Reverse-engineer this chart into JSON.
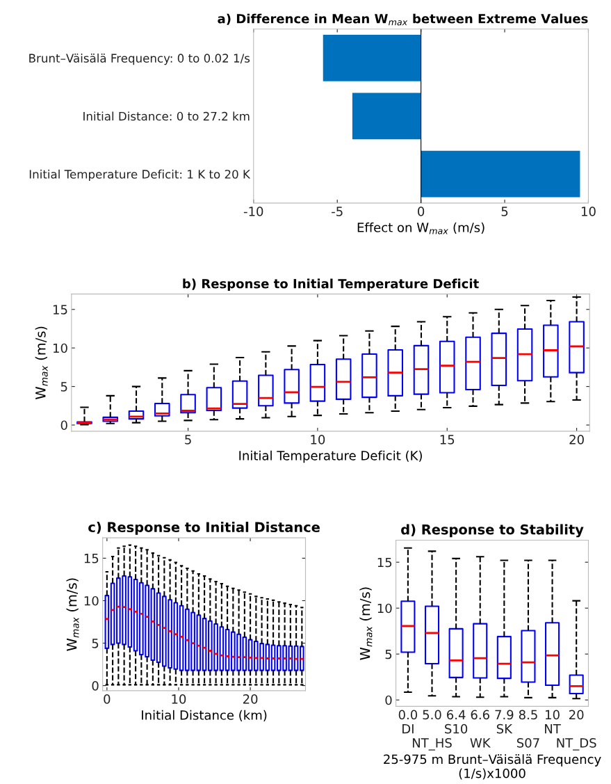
{
  "chart_data": [
    {
      "type": "bar",
      "orientation": "horizontal",
      "title": "a) Difference in Mean W$_{max}$ between Extreme Values",
      "xlabel": "Effect on W$_{max}$ (m/s)",
      "categories": [
        "Brunt–Väisälä Frequency: 0 to 0.02 1/s",
        "Initial Distance: 0 to 27.2 km",
        "Initial Temperature Deficit: 1 K to 20 K"
      ],
      "values": [
        -5.85,
        -4.1,
        9.5
      ],
      "color": "#0072bd",
      "xlim": [
        -10,
        10
      ],
      "xticks": [
        -10,
        -5,
        0,
        5,
        10
      ],
      "ref_lines": [
        {
          "axis": "x",
          "value": 0,
          "color": "#000000"
        }
      ]
    },
    {
      "type": "box",
      "title": "b) Response to Initial Temperature Deficit",
      "xlabel": "Initial Temperature Deficit (K)",
      "ylabel": "W$_{max}$ (m/s)",
      "x": [
        1,
        2,
        3,
        4,
        5,
        6,
        7,
        8,
        9,
        10,
        11,
        12,
        13,
        14,
        15,
        16,
        17,
        18,
        19,
        20
      ],
      "xlim": [
        0.5,
        20.5
      ],
      "xticks": [
        5,
        10,
        15,
        20
      ],
      "ylim": [
        -0.8,
        17
      ],
      "yticks": [
        0,
        5,
        10,
        15
      ],
      "line_style": "dashed",
      "series": [
        {
          "color": "#0000ff",
          "boxes": [
            {
              "low": 0.05,
              "q1": 0.2,
              "median": 0.3,
              "q3": 0.4,
              "high": 2.3
            },
            {
              "low": 0.2,
              "q1": 0.5,
              "median": 0.7,
              "q3": 1.0,
              "high": 3.8
            },
            {
              "low": 0.3,
              "q1": 0.8,
              "median": 1.1,
              "q3": 1.8,
              "high": 5.0
            },
            {
              "low": 0.5,
              "q1": 1.2,
              "median": 1.5,
              "q3": 2.8,
              "high": 6.1
            },
            {
              "low": 0.6,
              "q1": 1.6,
              "median": 1.85,
              "q3": 3.95,
              "high": 7.05
            },
            {
              "low": 0.7,
              "q1": 1.9,
              "median": 2.15,
              "q3": 4.85,
              "high": 7.9
            },
            {
              "low": 0.8,
              "q1": 2.2,
              "median": 2.75,
              "q3": 5.7,
              "high": 8.75
            },
            {
              "low": 0.95,
              "q1": 2.5,
              "median": 3.5,
              "q3": 6.45,
              "high": 9.5
            },
            {
              "low": 1.1,
              "q1": 2.85,
              "median": 4.25,
              "q3": 7.2,
              "high": 10.25
            },
            {
              "low": 1.25,
              "q1": 3.1,
              "median": 4.95,
              "q3": 7.85,
              "high": 10.95
            },
            {
              "low": 1.45,
              "q1": 3.35,
              "median": 5.6,
              "q3": 8.55,
              "high": 11.6
            },
            {
              "low": 1.6,
              "q1": 3.6,
              "median": 6.2,
              "q3": 9.2,
              "high": 12.2
            },
            {
              "low": 1.8,
              "q1": 3.8,
              "median": 6.8,
              "q3": 9.75,
              "high": 12.8
            },
            {
              "low": 2.0,
              "q1": 4.0,
              "median": 7.25,
              "q3": 10.3,
              "high": 13.4
            },
            {
              "low": 2.25,
              "q1": 4.2,
              "median": 7.7,
              "q3": 10.85,
              "high": 14.05
            },
            {
              "low": 2.45,
              "q1": 4.6,
              "median": 8.2,
              "q3": 11.4,
              "high": 14.55
            },
            {
              "low": 2.65,
              "q1": 5.15,
              "median": 8.7,
              "q3": 11.9,
              "high": 15.0
            },
            {
              "low": 2.85,
              "q1": 5.75,
              "median": 9.2,
              "q3": 12.45,
              "high": 15.5
            },
            {
              "low": 3.05,
              "q1": 6.25,
              "median": 9.7,
              "q3": 12.95,
              "high": 16.15
            },
            {
              "low": 3.25,
              "q1": 6.8,
              "median": 10.2,
              "q3": 13.4,
              "high": 16.6
            }
          ]
        }
      ]
    },
    {
      "type": "box",
      "title": "c) Response to Initial Distance",
      "xlabel": "Initial Distance (km)",
      "ylabel": "W$_{max}$ (m/s)",
      "x": [
        0,
        0.8,
        1.6,
        2.4,
        3.2,
        4.0,
        4.8,
        5.6,
        6.4,
        7.2,
        8.0,
        8.8,
        9.6,
        10.4,
        11.2,
        12.0,
        12.8,
        13.6,
        14.4,
        15.2,
        16.0,
        16.8,
        17.6,
        18.4,
        19.2,
        20.0,
        20.8,
        21.6,
        22.4,
        23.2,
        24.0,
        24.8,
        25.6,
        26.4,
        27.2
      ],
      "xlim": [
        -0.6,
        27.7
      ],
      "xticks": [
        0,
        10,
        20
      ],
      "ylim": [
        -0.6,
        17.4
      ],
      "yticks": [
        0,
        5,
        10,
        15
      ],
      "line_style": "dashed",
      "series": [
        {
          "color": "#0000ff",
          "boxes": [
            {
              "low": 0.1,
              "q1": 4.4,
              "median": 7.85,
              "q3": 10.6,
              "high": 13.4
            },
            {
              "low": 0.1,
              "q1": 4.85,
              "median": 8.9,
              "q3": 12.05,
              "high": 15.2
            },
            {
              "low": 0.1,
              "q1": 5.0,
              "median": 9.3,
              "q3": 12.65,
              "high": 16.2
            },
            {
              "low": 0.1,
              "q1": 4.85,
              "median": 9.25,
              "q3": 12.9,
              "high": 16.4
            },
            {
              "low": 0.1,
              "q1": 4.55,
              "median": 9.0,
              "q3": 12.8,
              "high": 16.55
            },
            {
              "low": 0.1,
              "q1": 4.1,
              "median": 8.7,
              "q3": 12.5,
              "high": 16.4
            },
            {
              "low": 0.1,
              "q1": 3.65,
              "median": 8.45,
              "q3": 12.1,
              "high": 16.2
            },
            {
              "low": 0.1,
              "q1": 3.4,
              "median": 8.1,
              "q3": 11.8,
              "high": 16.0
            },
            {
              "low": 0.1,
              "q1": 3.0,
              "median": 7.55,
              "q3": 11.4,
              "high": 15.6
            },
            {
              "low": 0.1,
              "q1": 2.75,
              "median": 7.15,
              "q3": 10.9,
              "high": 15.3
            },
            {
              "low": 0.1,
              "q1": 2.3,
              "median": 6.8,
              "q3": 10.5,
              "high": 15.05
            },
            {
              "low": 0.1,
              "q1": 2.1,
              "median": 6.4,
              "q3": 10.1,
              "high": 14.8
            },
            {
              "low": 0.1,
              "q1": 1.95,
              "median": 6.05,
              "q3": 9.75,
              "high": 14.5
            },
            {
              "low": 0.1,
              "q1": 1.8,
              "median": 5.75,
              "q3": 9.4,
              "high": 14.1
            },
            {
              "low": 0.1,
              "q1": 1.8,
              "median": 5.35,
              "q3": 9.0,
              "high": 13.8
            },
            {
              "low": 0.1,
              "q1": 1.8,
              "median": 5.0,
              "q3": 8.6,
              "high": 13.5
            },
            {
              "low": 0.1,
              "q1": 1.8,
              "median": 4.7,
              "q3": 8.3,
              "high": 13.15
            },
            {
              "low": 0.1,
              "q1": 1.8,
              "median": 4.45,
              "q3": 7.9,
              "high": 12.9
            },
            {
              "low": 0.1,
              "q1": 1.8,
              "median": 4.1,
              "q3": 7.6,
              "high": 12.55
            },
            {
              "low": 0.1,
              "q1": 1.8,
              "median": 3.75,
              "q3": 7.25,
              "high": 12.25
            },
            {
              "low": 0.1,
              "q1": 1.8,
              "median": 3.55,
              "q3": 6.9,
              "high": 12.0
            },
            {
              "low": 0.1,
              "q1": 1.8,
              "median": 3.45,
              "q3": 6.6,
              "high": 11.7
            },
            {
              "low": 0.1,
              "q1": 1.8,
              "median": 3.4,
              "q3": 6.3,
              "high": 11.45
            },
            {
              "low": 0.1,
              "q1": 1.8,
              "median": 3.35,
              "q3": 6.05,
              "high": 11.25
            },
            {
              "low": 0.1,
              "q1": 1.8,
              "median": 3.35,
              "q3": 5.7,
              "high": 11.0
            },
            {
              "low": 0.1,
              "q1": 1.8,
              "median": 3.3,
              "q3": 5.4,
              "high": 10.8
            },
            {
              "low": 0.1,
              "q1": 1.8,
              "median": 3.25,
              "q3": 5.2,
              "high": 10.5
            },
            {
              "low": 0.1,
              "q1": 1.8,
              "median": 3.25,
              "q3": 4.95,
              "high": 10.35
            },
            {
              "low": 0.1,
              "q1": 1.8,
              "median": 3.2,
              "q3": 4.85,
              "high": 10.2
            },
            {
              "low": 0.1,
              "q1": 1.8,
              "median": 3.2,
              "q3": 4.75,
              "high": 10.05
            },
            {
              "low": 0.1,
              "q1": 1.8,
              "median": 3.2,
              "q3": 4.7,
              "high": 9.85
            },
            {
              "low": 0.1,
              "q1": 1.8,
              "median": 3.2,
              "q3": 4.7,
              "high": 9.7
            },
            {
              "low": 0.1,
              "q1": 1.8,
              "median": 3.2,
              "q3": 4.65,
              "high": 9.55
            },
            {
              "low": 0.1,
              "q1": 1.8,
              "median": 3.15,
              "q3": 4.65,
              "high": 9.4
            },
            {
              "low": 0.1,
              "q1": 1.8,
              "median": 3.15,
              "q3": 4.6,
              "high": 9.2
            }
          ]
        }
      ]
    },
    {
      "type": "box",
      "title": "d) Response to Stability",
      "xlabel": "25-975 m Brunt–Väisälä Frequency (1/s)x1000",
      "ylabel": "W$_{max}$ (m/s)",
      "categories": [
        "0.0\nDI",
        "5.0\n\nNT_HS",
        "6.4\nS10",
        "6.6\n\nWK",
        "7.9\nSK",
        "8.5\n\nS07",
        "10\nNT",
        "20\n\nNT_DS"
      ],
      "ylim": [
        -0.7,
        17.4
      ],
      "yticks": [
        0,
        5,
        10,
        15
      ],
      "line_style": "dashed",
      "series": [
        {
          "color": "#0000ff",
          "boxes": [
            {
              "low": 0.85,
              "q1": 5.2,
              "median": 8.05,
              "q3": 10.75,
              "high": 16.55
            },
            {
              "low": 0.45,
              "q1": 3.95,
              "median": 7.3,
              "q3": 10.2,
              "high": 16.2
            },
            {
              "low": 0.35,
              "q1": 2.45,
              "median": 4.3,
              "q3": 7.75,
              "high": 15.4
            },
            {
              "low": 0.3,
              "q1": 2.4,
              "median": 4.55,
              "q3": 8.3,
              "high": 15.6
            },
            {
              "low": 0.35,
              "q1": 2.35,
              "median": 3.95,
              "q3": 6.9,
              "high": 15.2
            },
            {
              "low": 0.25,
              "q1": 1.95,
              "median": 4.1,
              "q3": 7.55,
              "high": 15.2
            },
            {
              "low": 0.25,
              "q1": 1.6,
              "median": 4.85,
              "q3": 8.4,
              "high": 15.2
            },
            {
              "low": 0.15,
              "q1": 0.7,
              "median": 1.5,
              "q3": 2.7,
              "high": 10.8
            }
          ]
        }
      ]
    }
  ]
}
